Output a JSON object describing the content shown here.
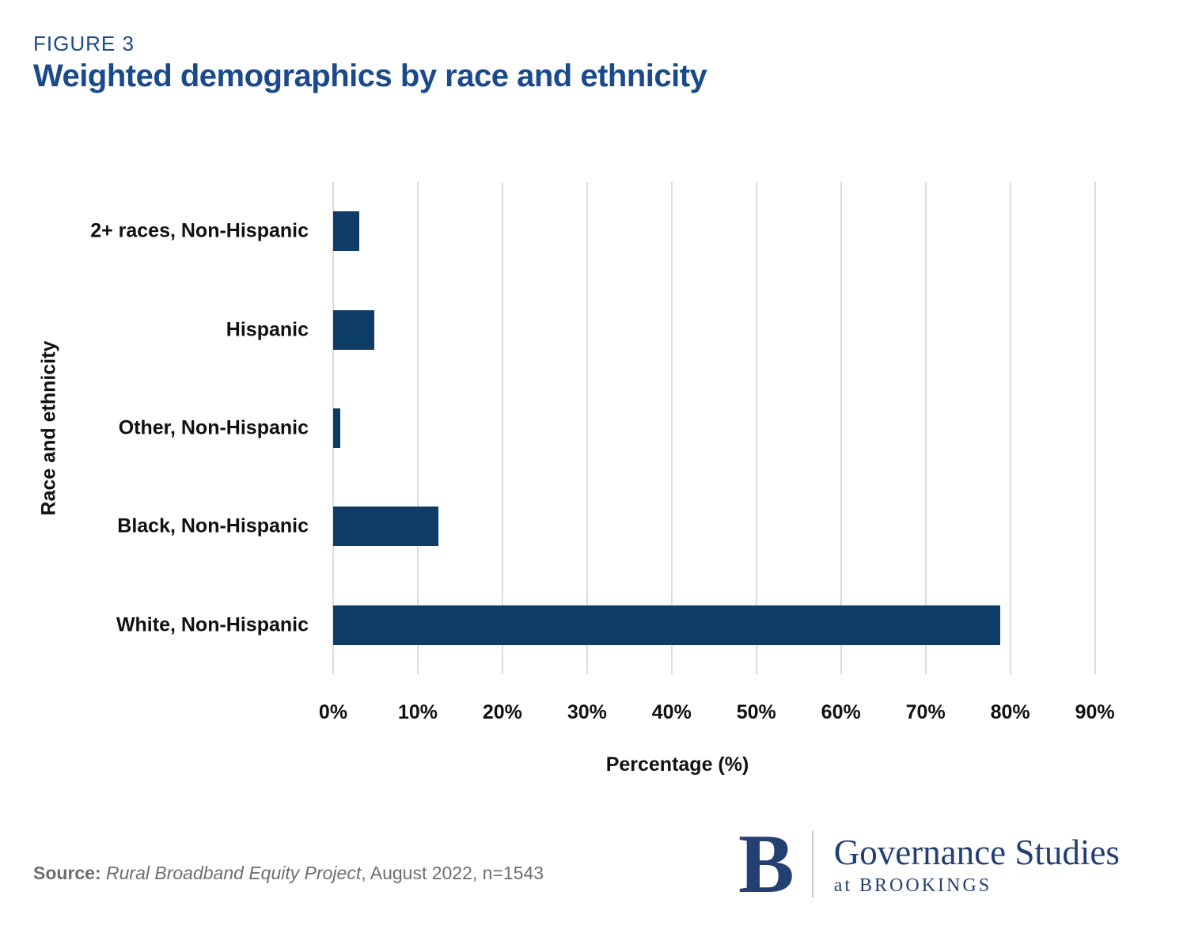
{
  "header": {
    "figure_label": "FIGURE 3",
    "title": "Weighted demographics by race and ethnicity"
  },
  "chart_data": {
    "type": "bar",
    "orientation": "horizontal",
    "title": "Weighted demographics by race and ethnicity",
    "categories": [
      "2+ races, Non-Hispanic",
      "Hispanic",
      "Other, Non-Hispanic",
      "Black, Non-Hispanic",
      "White, Non-Hispanic"
    ],
    "values": [
      3.1,
      4.9,
      0.8,
      12.4,
      78.8
    ],
    "xlabel": "Percentage (%)",
    "ylabel": "Race and ethnicity",
    "xlim": [
      0,
      93.5
    ],
    "xtick_values": [
      0,
      10,
      20,
      30,
      40,
      50,
      60,
      70,
      80,
      90
    ],
    "xtick_labels": [
      "0%",
      "10%",
      "20%",
      "30%",
      "40%",
      "50%",
      "60%",
      "70%",
      "80%",
      "90%"
    ],
    "grid": true,
    "legend": false,
    "bar_color": "#0d3d66",
    "gridline_color": "#dcdcdc"
  },
  "source": {
    "prefix": "Source:",
    "project": "Rural Broadband Equity Project",
    "suffix": ", August 2022, n=1543"
  },
  "logo": {
    "monogram": "B",
    "name": "Governance Studies",
    "tagline": "at BROOKINGS"
  },
  "colors": {
    "title_navy": "#1a4a8c",
    "bar_navy": "#0d3d66",
    "logo_navy": "#243f72",
    "gridline_gray": "#dcdcdc",
    "source_gray": "#6e6e6e",
    "chart_text": "#111111"
  }
}
